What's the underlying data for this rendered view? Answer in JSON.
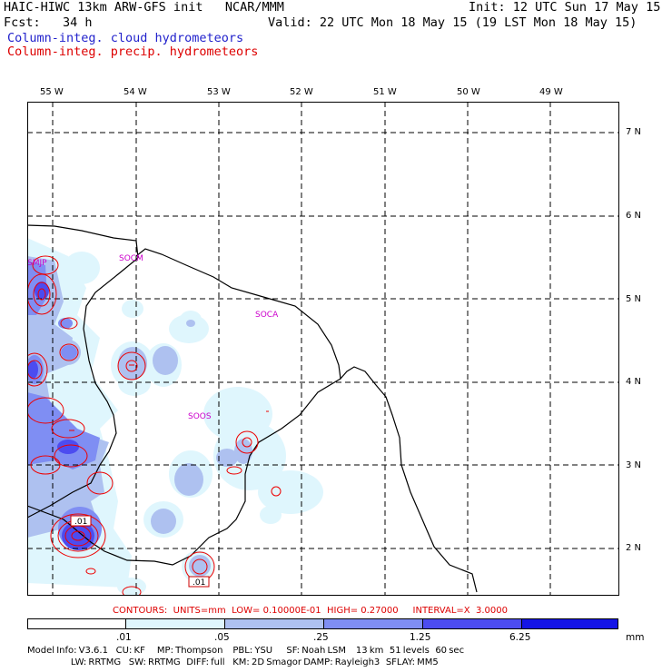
{
  "header": {
    "title_left": "HAIC-HIWC 13km ARW-GFS init   NCAR/MMM",
    "init": "Init: 12 UTC Sun 17 May 15",
    "fcst_label": "Fcst:   34 h",
    "valid": "Valid: 22 UTC Mon 18 May 15 (19 LST Mon 18 May 15)",
    "field_cloud": "Column-integ. cloud hydrometeors",
    "field_precip": "Column-integ. precip. hydrometeors"
  },
  "map": {
    "lon_labels": [
      "55 W",
      "54 W",
      "53 W",
      "52 W",
      "51 W",
      "50 W",
      "49 W"
    ],
    "lat_labels": [
      "7 N",
      "6 N",
      "5 N",
      "4 N",
      "3 N",
      "2 N"
    ],
    "stations": [
      "SMJP",
      "SOCM",
      "SOCA",
      "SOOS"
    ],
    "contour_value_labels": [
      ".01",
      ".01"
    ]
  },
  "contour_info": "CONTOURS:  UNITS=mm  LOW= 0.10000E-01  HIGH= 0.27000     INTERVAL=X  3.0000",
  "legend": {
    "ticks": [
      ".01",
      ".05",
      ".25",
      "1.25",
      "6.25"
    ],
    "units": "mm",
    "bins": [
      {
        "from": 0,
        "to": 0.01,
        "color": "#ffffff"
      },
      {
        "from": 0.01,
        "to": 0.05,
        "color": "#dff6fd"
      },
      {
        "from": 0.05,
        "to": 0.25,
        "color": "#aec1f0"
      },
      {
        "from": 0.25,
        "to": 1.25,
        "color": "#7f8ef3"
      },
      {
        "from": 1.25,
        "to": 6.25,
        "color": "#4c4cf0"
      },
      {
        "from": 6.25,
        "to": 31.25,
        "color": "#1515e6"
      }
    ]
  },
  "footer": {
    "line1": "Model Info: V3.6.1    CU: KF      MP: Thompson     PBL: YSU       SF: Noah LSM     13 km   51 levels   60 sec",
    "line2": "                      LW: RRTMG    SW: RRTMG   DIFF: full    KM: 2D Smagor DAMP: Rayleigh3   SFLAY: MM5"
  },
  "colors": {
    "cloud_text": "#2222cc",
    "precip_text": "#dd0000",
    "station_text": "#cc00cc",
    "contour_line": "#ee0000"
  }
}
